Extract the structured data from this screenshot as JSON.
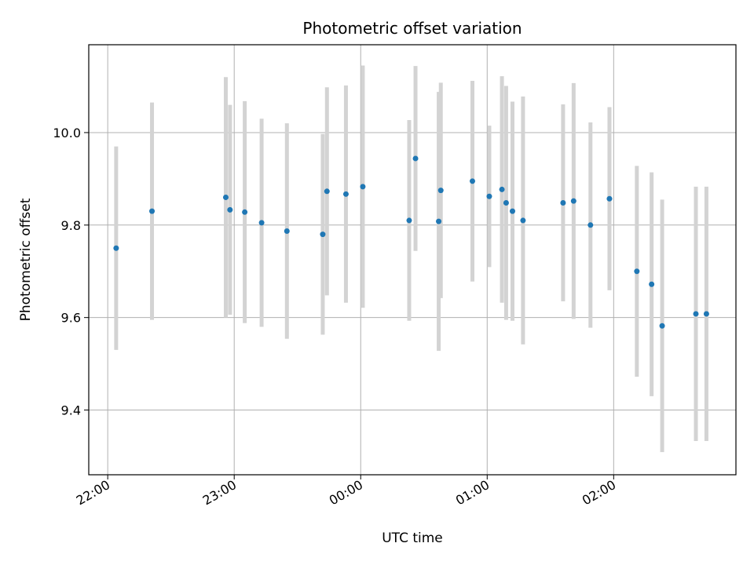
{
  "chart_data": {
    "type": "scatter",
    "title": "Photometric offset variation",
    "xlabel": "UTC time",
    "ylabel": "Photometric offset",
    "x_is_time": true,
    "xlim": [
      "21:51",
      "02:58"
    ],
    "ylim": [
      9.26,
      10.19
    ],
    "xticks": [
      "22:00",
      "23:00",
      "00:00",
      "01:00",
      "02:00"
    ],
    "yticks": [
      9.4,
      9.6,
      9.8,
      10.0
    ],
    "ytick_labels": [
      "9.4",
      "9.6",
      "9.8",
      "10.0"
    ],
    "grid": true,
    "marker_color": "#1f77b4",
    "errorbar_color": "#d3d3d3",
    "points": [
      {
        "x": "22:04",
        "y": 9.75,
        "err": 0.22
      },
      {
        "x": "22:21",
        "y": 9.83,
        "err": 0.235
      },
      {
        "x": "22:56",
        "y": 9.86,
        "err": 0.26
      },
      {
        "x": "22:58",
        "y": 9.833,
        "err": 0.227
      },
      {
        "x": "23:05",
        "y": 9.828,
        "err": 0.24
      },
      {
        "x": "23:13",
        "y": 9.805,
        "err": 0.225
      },
      {
        "x": "23:25",
        "y": 9.787,
        "err": 0.233
      },
      {
        "x": "23:42",
        "y": 9.78,
        "err": 0.217
      },
      {
        "x": "23:44",
        "y": 9.873,
        "err": 0.225
      },
      {
        "x": "23:53",
        "y": 9.867,
        "err": 0.235
      },
      {
        "x": "00:01",
        "y": 9.883,
        "err": 0.262
      },
      {
        "x": "00:23",
        "y": 9.81,
        "err": 0.217
      },
      {
        "x": "00:26",
        "y": 9.944,
        "err": 0.2
      },
      {
        "x": "00:37",
        "y": 9.808,
        "err": 0.28
      },
      {
        "x": "00:38",
        "y": 9.875,
        "err": 0.233
      },
      {
        "x": "00:53",
        "y": 9.895,
        "err": 0.217
      },
      {
        "x": "01:01",
        "y": 9.862,
        "err": 0.153
      },
      {
        "x": "01:07",
        "y": 9.877,
        "err": 0.245
      },
      {
        "x": "01:09",
        "y": 9.848,
        "err": 0.253
      },
      {
        "x": "01:12",
        "y": 9.83,
        "err": 0.237
      },
      {
        "x": "01:17",
        "y": 9.81,
        "err": 0.268
      },
      {
        "x": "01:36",
        "y": 9.848,
        "err": 0.213
      },
      {
        "x": "01:41",
        "y": 9.852,
        "err": 0.255
      },
      {
        "x": "01:49",
        "y": 9.8,
        "err": 0.222
      },
      {
        "x": "01:58",
        "y": 9.857,
        "err": 0.198
      },
      {
        "x": "02:11",
        "y": 9.7,
        "err": 0.228
      },
      {
        "x": "02:18",
        "y": 9.672,
        "err": 0.242
      },
      {
        "x": "02:23",
        "y": 9.582,
        "err": 0.273
      },
      {
        "x": "02:39",
        "y": 9.608,
        "err": 0.275
      },
      {
        "x": "02:44",
        "y": 9.608,
        "err": 0.275
      }
    ]
  }
}
